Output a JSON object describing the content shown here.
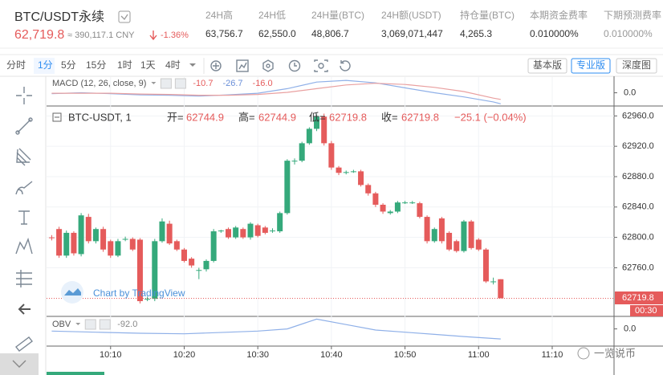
{
  "header": {
    "symbol": "BTC/USDT永续",
    "price": "62,719.8",
    "cny": "≈ 390,117.1 CNY",
    "change": "-1.36%",
    "stats": [
      {
        "label": "24H高",
        "value": "63,756.7"
      },
      {
        "label": "24H低",
        "value": "62,550.0"
      },
      {
        "label": "24H量(BTC)",
        "value": "48,806.7"
      },
      {
        "label": "24H额(USDT)",
        "value": "3,069,071,447"
      },
      {
        "label": "持仓量(BTC)",
        "value": "4,265.3"
      },
      {
        "label": "本期资金费率",
        "value": "0.010000%"
      },
      {
        "label": "下期预测费率",
        "value": "0.010000%"
      }
    ]
  },
  "toolbar": {
    "intervals": [
      "分时",
      "1分",
      "5分",
      "15分",
      "1时",
      "1天",
      "4时"
    ],
    "versions": [
      "基本版",
      "专业版",
      "深度图"
    ]
  },
  "chart_data": {
    "type": "candlestick",
    "title": "BTC-USDT, 1",
    "ohlc_legend": [
      {
        "label": "开=",
        "value": "62744.9"
      },
      {
        "label": "高=",
        "value": "62744.9"
      },
      {
        "label": "低=",
        "value": "62719.8"
      },
      {
        "label": "收=",
        "value": "62719.8"
      }
    ],
    "change_text": "−25.1 (−0.04%)",
    "attribution": "Chart by TradingView",
    "price_tag": "62719.8",
    "countdown": "00:30",
    "up_color": "#35a97b",
    "down_color": "#e55b5b",
    "grid": true,
    "xlim": [
      1.3,
      78.4
    ],
    "xticks": [
      {
        "value": 10,
        "label": "10:10"
      },
      {
        "value": 20,
        "label": "10:20"
      },
      {
        "value": 30,
        "label": "10:30"
      },
      {
        "value": 40,
        "label": "10:40"
      },
      {
        "value": 50,
        "label": "10:50"
      },
      {
        "value": 60,
        "label": "11:00"
      },
      {
        "value": 70,
        "label": "11:10"
      }
    ],
    "ylim": [
      62697,
      62972
    ],
    "yticks": [
      {
        "value": 62760,
        "label": "62760.0"
      },
      {
        "value": 62800,
        "label": "62800.0"
      },
      {
        "value": 62840,
        "label": "62840.0"
      },
      {
        "value": 62880,
        "label": "62880.0"
      },
      {
        "value": 62920,
        "label": "62920.0"
      },
      {
        "value": 62960,
        "label": "62960.0"
      }
    ],
    "x": [
      2,
      3,
      4,
      5,
      6,
      7,
      8,
      9,
      10,
      11,
      12,
      13,
      14,
      15,
      16,
      17,
      18,
      19,
      20,
      21,
      22,
      23,
      24,
      25,
      26,
      27,
      28,
      29,
      30,
      31,
      32,
      33,
      34,
      35,
      36,
      37,
      38,
      39,
      40,
      41,
      42,
      43,
      44,
      45,
      46,
      47,
      48,
      49,
      50,
      51,
      52,
      53,
      54,
      55,
      56,
      57,
      58,
      59,
      60,
      61,
      62,
      63
    ],
    "open": [
      62800,
      62811,
      62776,
      62806,
      62778,
      62827,
      62795,
      62811,
      62795,
      62776,
      62798,
      62798,
      62797,
      62719,
      62719,
      62795,
      62818,
      62795,
      62784,
      62772,
      62757,
      62758,
      62769,
      62808,
      62811,
      62800,
      62811,
      62800,
      62816,
      62813,
      62809,
      62808,
      62832,
      62901,
      62901,
      62924,
      62943,
      62959,
      62924,
      62892,
      62886,
      62887,
      62887,
      62869,
      62858,
      62843,
      62832,
      62834,
      62846,
      62846,
      62845,
      62827,
      62795,
      62825,
      62806,
      62795,
      62782,
      62821,
      62797,
      62784,
      62742,
      62744.9
    ],
    "high": [
      62803,
      62814,
      62809,
      62808,
      62832,
      62831,
      62813,
      62814,
      62797,
      62798,
      62801,
      62800,
      62799,
      62722,
      62798,
      62825,
      62822,
      62797,
      62786,
      62774,
      62760,
      62771,
      62811,
      62810,
      62813,
      62815,
      62813,
      62820,
      62818,
      62815,
      62812,
      62834,
      62903,
      62904,
      62926,
      62945,
      62962,
      62963,
      62927,
      62894,
      62888,
      62889,
      62889,
      62871,
      62860,
      62845,
      62836,
      62848,
      62848,
      62848,
      62847,
      62829,
      62813,
      62827,
      62808,
      62797,
      62823,
      62823,
      62799,
      62786,
      62747,
      62744.9
    ],
    "low": [
      62796,
      62773,
      62773,
      62776,
      62775,
      62792,
      62792,
      62781,
      62773,
      62774,
      62795,
      62782,
      62713,
      62716,
      62716,
      62793,
      62790,
      62782,
      62767,
      62760,
      62745,
      62755,
      62767,
      62806,
      62798,
      62798,
      62798,
      62797,
      62800,
      62804,
      62806,
      62806,
      62830,
      62896,
      62899,
      62922,
      62940,
      62921,
      62889,
      62882,
      62883,
      62885,
      62867,
      62855,
      62840,
      62831,
      62830,
      62832,
      62844,
      62844,
      62825,
      62792,
      62793,
      62792,
      62782,
      62780,
      62780,
      62784,
      62782,
      62740,
      62738,
      62719.8
    ],
    "close": [
      62799,
      62776,
      62806,
      62779,
      62829,
      62795,
      62811,
      62784,
      62776,
      62795,
      62798,
      62784,
      62716,
      62719,
      62795,
      62821,
      62792,
      62784,
      62769,
      62763,
      62757,
      62769,
      62808,
      62809,
      62800,
      62813,
      62800,
      62818,
      62802,
      62806,
      62809,
      62832,
      62901,
      62901,
      62924,
      62943,
      62959,
      62924,
      62892,
      62885,
      62886,
      62887,
      62869,
      62858,
      62843,
      62834,
      62834,
      62846,
      62846,
      62846,
      62827,
      62795,
      62811,
      62795,
      62784,
      62782,
      62821,
      62786,
      62784,
      62742,
      62742,
      62719.8
    ],
    "indicators": [
      {
        "name": "MACD (12, 26, close, 9)",
        "legend_values": [
          {
            "text": "-10.7",
            "color": "#e55b5b"
          },
          {
            "text": "-26.7",
            "color": "#6a8fd8"
          },
          {
            "text": "-16.0",
            "color": "#e55b5b"
          }
        ],
        "ylim": [
          -30,
          36
        ],
        "yticks": [
          {
            "value": 0,
            "label": "0.0"
          }
        ],
        "x": [
          2,
          6,
          10,
          14,
          18,
          22,
          26,
          30,
          34,
          38,
          42,
          46,
          50,
          54,
          58,
          62,
          63
        ],
        "series": [
          {
            "color": "#8fb0e8",
            "values": [
              -2,
              0,
              -2,
              -5,
              -6,
              -8,
              -5,
              -1,
              10,
              26,
              30,
              24,
              12,
              0,
              -10,
              -22,
              -26.7
            ]
          },
          {
            "color": "#e9a0a0",
            "values": [
              -1,
              -1,
              -1,
              -3,
              -4,
              -6,
              -6,
              -4,
              1,
              10,
              19,
              23,
              20,
              13,
              3,
              -13,
              -16
            ]
          }
        ]
      },
      {
        "name": "OBV",
        "legend_values": [
          {
            "text": "-92.0",
            "color": "#888888"
          }
        ],
        "ylim": [
          -150,
          100
        ],
        "yticks": [
          {
            "value": 0,
            "label": "0.0"
          }
        ],
        "x": [
          2,
          8,
          14,
          20,
          26,
          30,
          34,
          38,
          42,
          46,
          50,
          54,
          58,
          63
        ],
        "series": [
          {
            "color": "#8fb0e8",
            "values": [
              -20,
              -30,
              -40,
              -45,
              -30,
              -20,
              0,
              90,
              40,
              -10,
              -30,
              -50,
              -70,
              -92
            ]
          }
        ]
      }
    ]
  },
  "watermark": "一览说币"
}
